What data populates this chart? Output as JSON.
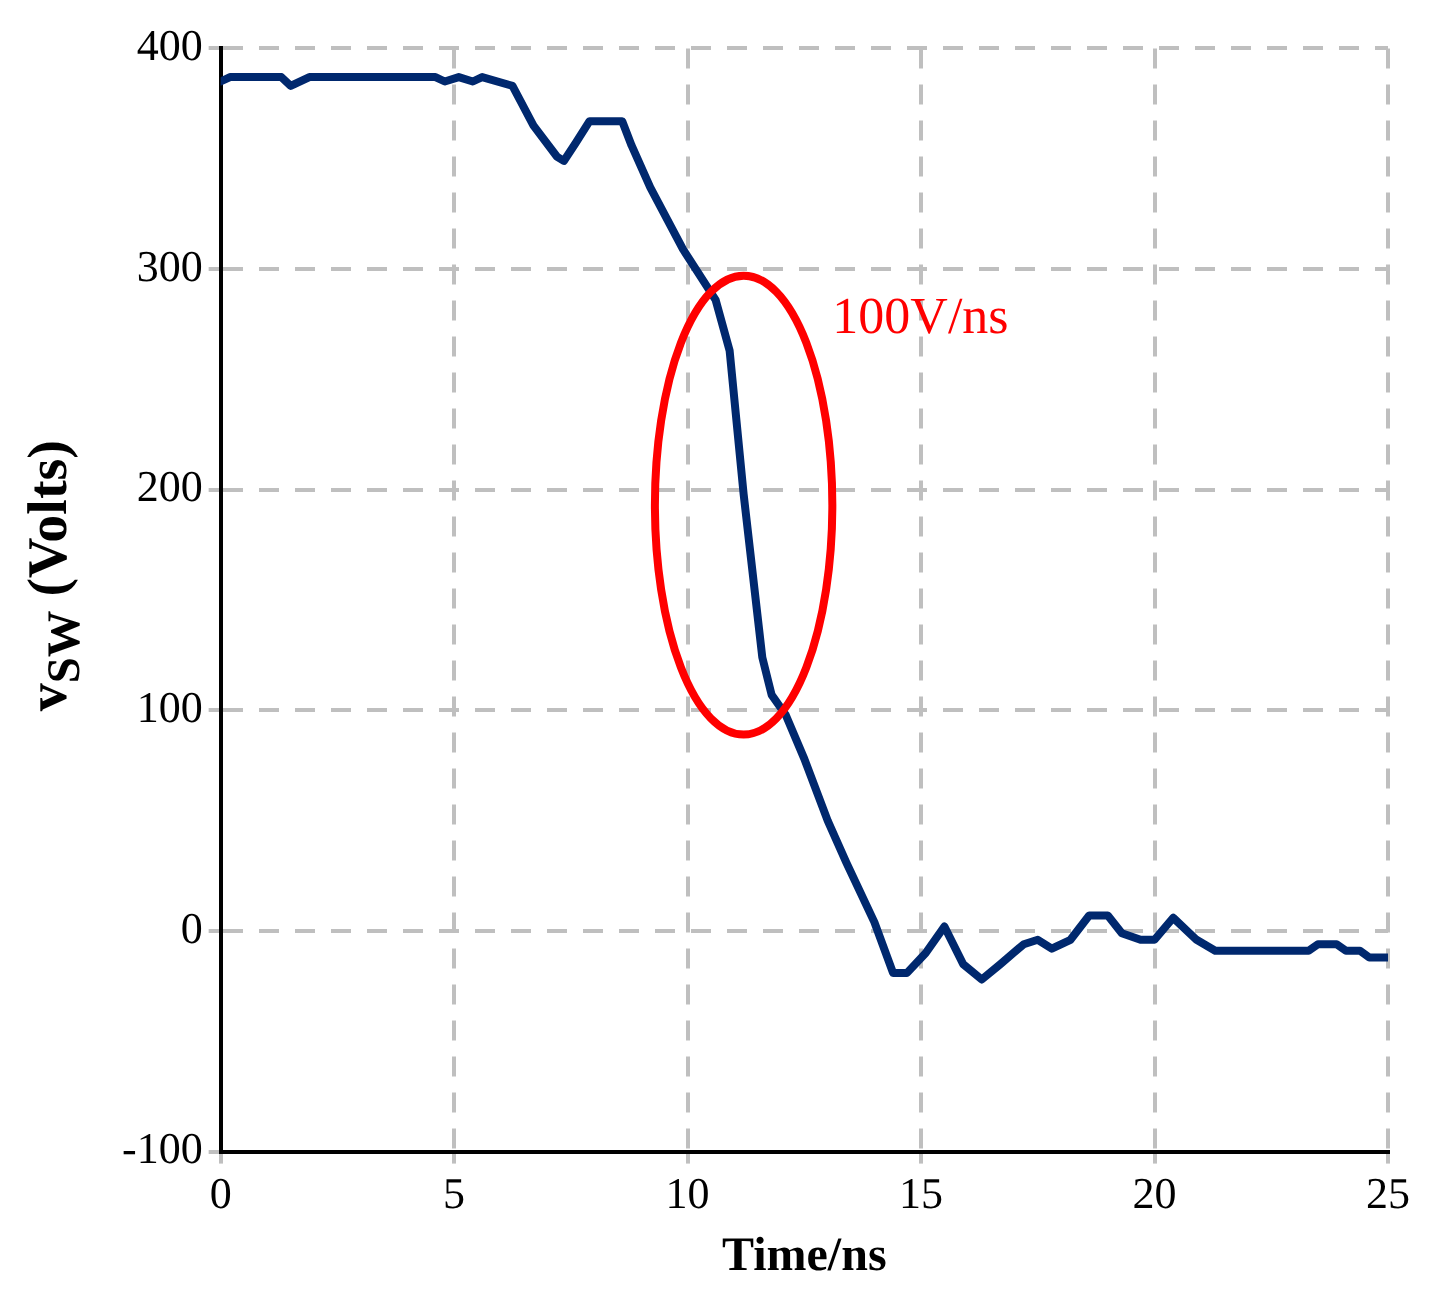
{
  "chart_data": {
    "type": "line",
    "xlabel": "Time/ns",
    "ylabel": "v$_{SW}$ (Volts)",
    "annotations": [
      "100V/ns"
    ],
    "xlim": [
      0,
      25
    ],
    "xticks": [
      0,
      5,
      10,
      15,
      20,
      25
    ],
    "ylim": [
      -100,
      400
    ],
    "yticks": [
      -100,
      0,
      100,
      200,
      300,
      400
    ],
    "grid": true,
    "legend": false,
    "marker": "none",
    "line_style": "solid",
    "series": [
      {
        "color": "#00286e",
        "x": [
          0,
          0.2,
          1.3,
          1.5,
          1.9,
          4.6,
          4.8,
          5.1,
          5.4,
          5.6,
          6.25,
          6.7,
          7.2,
          7.35,
          7.6,
          7.9,
          8.6,
          8.8,
          9.2,
          9.9,
          10.6,
          10.9,
          11.2,
          11.6,
          11.8,
          12.1,
          12.5,
          13.0,
          13.4,
          14.0,
          14.4,
          14.7,
          15.1,
          15.5,
          15.9,
          16.3,
          16.7,
          17.2,
          17.5,
          17.8,
          18.2,
          18.6,
          19.0,
          19.3,
          19.7,
          20.0,
          20.4,
          20.9,
          21.3,
          23.3,
          23.5,
          23.9,
          24.1,
          24.4,
          24.6,
          25
        ],
        "values": [
          385,
          387,
          387,
          383,
          387,
          387,
          385,
          387,
          385,
          387,
          383,
          365,
          351,
          349,
          357,
          367,
          367,
          356,
          337,
          309,
          286,
          263,
          198,
          124,
          107,
          98,
          78,
          50,
          31,
          4,
          -19,
          -19,
          -10,
          2,
          -15,
          -22,
          -15,
          -6,
          -4,
          -8,
          -4,
          7,
          7,
          -1,
          -4,
          -4,
          6,
          -4,
          -9,
          -9,
          -6,
          -6,
          -9,
          -9,
          -12,
          -12
        ]
      }
    ]
  }
}
